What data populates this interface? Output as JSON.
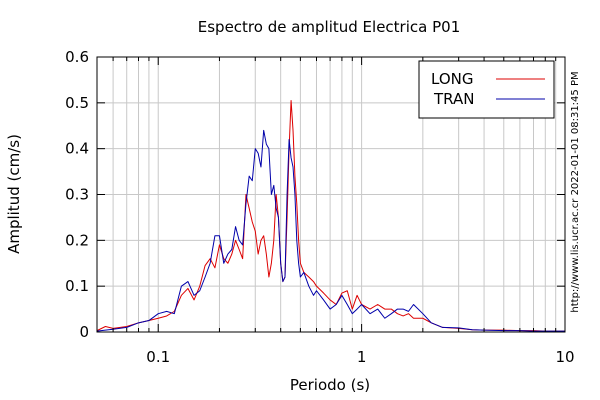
{
  "chart_data": {
    "type": "line",
    "title": "Espectro de amplitud Electrica P01",
    "xlabel": "Periodo (s)",
    "ylabel": "Amplitud (cm/s)",
    "x_scale": "log",
    "xlim": [
      0.05,
      10
    ],
    "ylim": [
      0,
      0.6
    ],
    "x_ticks": [
      0.1,
      1,
      10
    ],
    "x_tick_labels": [
      "0.1",
      "1",
      "10"
    ],
    "y_ticks": [
      0,
      0.1,
      0.2,
      0.3,
      0.4,
      0.5,
      0.6
    ],
    "y_tick_labels": [
      "0",
      "0.1",
      "0.2",
      "0.3",
      "0.4",
      "0.5",
      "0.6"
    ],
    "grid": true,
    "legend_position": "top-right",
    "side_text": "http://www.lis.ucr.ac.cr     2022-01-01 08:31:45 PM",
    "series": [
      {
        "name": "LONG",
        "color": "#dd0000",
        "x": [
          0.05,
          0.055,
          0.06,
          0.07,
          0.08,
          0.09,
          0.1,
          0.11,
          0.12,
          0.13,
          0.14,
          0.15,
          0.16,
          0.17,
          0.18,
          0.19,
          0.2,
          0.21,
          0.22,
          0.23,
          0.24,
          0.25,
          0.26,
          0.27,
          0.28,
          0.29,
          0.3,
          0.31,
          0.32,
          0.33,
          0.34,
          0.35,
          0.36,
          0.37,
          0.38,
          0.39,
          0.4,
          0.41,
          0.42,
          0.43,
          0.44,
          0.45,
          0.46,
          0.47,
          0.48,
          0.49,
          0.5,
          0.52,
          0.55,
          0.58,
          0.6,
          0.65,
          0.7,
          0.75,
          0.8,
          0.85,
          0.9,
          0.95,
          1.0,
          1.1,
          1.2,
          1.3,
          1.4,
          1.5,
          1.6,
          1.7,
          1.8,
          2.0,
          2.2,
          2.5,
          3.0,
          3.5,
          4.0,
          5.0,
          6.0,
          7.0,
          8.0,
          9.0,
          10.0
        ],
        "y": [
          0.003,
          0.012,
          0.008,
          0.012,
          0.02,
          0.025,
          0.03,
          0.035,
          0.045,
          0.08,
          0.095,
          0.07,
          0.1,
          0.145,
          0.16,
          0.14,
          0.19,
          0.16,
          0.15,
          0.17,
          0.2,
          0.18,
          0.16,
          0.3,
          0.27,
          0.24,
          0.22,
          0.17,
          0.2,
          0.21,
          0.17,
          0.12,
          0.15,
          0.2,
          0.3,
          0.25,
          0.15,
          0.11,
          0.12,
          0.25,
          0.4,
          0.505,
          0.44,
          0.34,
          0.28,
          0.2,
          0.15,
          0.13,
          0.12,
          0.11,
          0.1,
          0.085,
          0.07,
          0.06,
          0.085,
          0.09,
          0.05,
          0.08,
          0.06,
          0.05,
          0.06,
          0.05,
          0.05,
          0.04,
          0.035,
          0.04,
          0.03,
          0.03,
          0.02,
          0.01,
          0.008,
          0.005,
          0.004,
          0.004,
          0.003,
          0.003,
          0.002,
          0.002,
          0.002
        ]
      },
      {
        "name": "TRAN",
        "color": "#0000aa",
        "x": [
          0.05,
          0.055,
          0.06,
          0.07,
          0.08,
          0.09,
          0.1,
          0.11,
          0.12,
          0.13,
          0.14,
          0.15,
          0.16,
          0.17,
          0.18,
          0.19,
          0.2,
          0.21,
          0.22,
          0.23,
          0.24,
          0.25,
          0.26,
          0.27,
          0.28,
          0.29,
          0.3,
          0.31,
          0.32,
          0.33,
          0.34,
          0.35,
          0.36,
          0.37,
          0.38,
          0.39,
          0.4,
          0.41,
          0.42,
          0.43,
          0.44,
          0.45,
          0.46,
          0.47,
          0.48,
          0.49,
          0.5,
          0.52,
          0.55,
          0.58,
          0.6,
          0.65,
          0.7,
          0.75,
          0.8,
          0.85,
          0.9,
          0.95,
          1.0,
          1.1,
          1.2,
          1.3,
          1.4,
          1.5,
          1.6,
          1.7,
          1.8,
          2.0,
          2.2,
          2.5,
          3.0,
          3.5,
          4.0,
          5.0,
          6.0,
          7.0,
          8.0,
          9.0,
          10.0
        ],
        "y": [
          0.002,
          0.004,
          0.006,
          0.01,
          0.02,
          0.025,
          0.04,
          0.045,
          0.04,
          0.1,
          0.11,
          0.08,
          0.09,
          0.12,
          0.15,
          0.21,
          0.21,
          0.15,
          0.17,
          0.18,
          0.23,
          0.2,
          0.19,
          0.28,
          0.34,
          0.33,
          0.4,
          0.39,
          0.36,
          0.44,
          0.41,
          0.4,
          0.3,
          0.32,
          0.27,
          0.25,
          0.15,
          0.11,
          0.12,
          0.3,
          0.42,
          0.38,
          0.36,
          0.3,
          0.2,
          0.15,
          0.12,
          0.13,
          0.1,
          0.08,
          0.09,
          0.07,
          0.05,
          0.06,
          0.08,
          0.06,
          0.04,
          0.05,
          0.06,
          0.04,
          0.05,
          0.03,
          0.04,
          0.05,
          0.05,
          0.045,
          0.06,
          0.04,
          0.02,
          0.01,
          0.009,
          0.005,
          0.004,
          0.003,
          0.003,
          0.002,
          0.002,
          0.002,
          0.002
        ]
      }
    ]
  }
}
